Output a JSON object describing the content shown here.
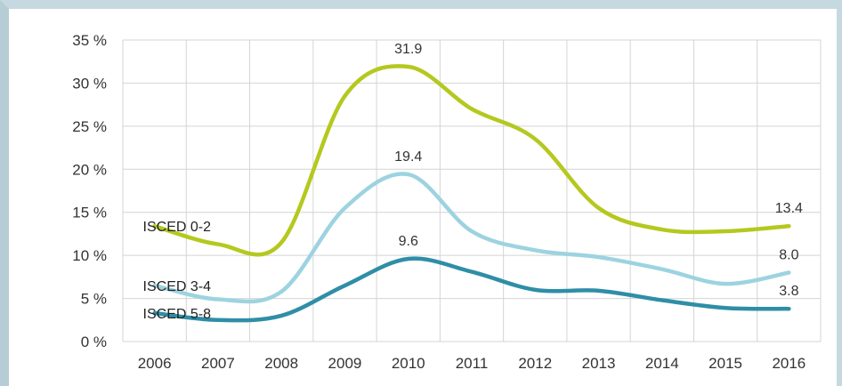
{
  "chart_data": {
    "type": "line",
    "categories": [
      "2006",
      "2007",
      "2008",
      "2009",
      "2010",
      "2011",
      "2012",
      "2013",
      "2014",
      "2015",
      "2016"
    ],
    "y_ticks": [
      "0 %",
      "5 %",
      "10 %",
      "15 %",
      "20 %",
      "25 %",
      "30 %",
      "35 %"
    ],
    "ylim": [
      0,
      35
    ],
    "grid": true,
    "series": [
      {
        "name": "ISCED 0-2",
        "color": "#b5c81f",
        "values": [
          13.4,
          11.3,
          11.5,
          28.5,
          31.9,
          27.0,
          23.5,
          15.5,
          13.0,
          12.8,
          13.4
        ],
        "labels": [
          {
            "index": 4,
            "text": "31.9"
          },
          {
            "index": 10,
            "text": "13.4"
          }
        ]
      },
      {
        "name": "ISCED 3-4",
        "color": "#9dd3e0",
        "values": [
          6.5,
          4.9,
          5.8,
          15.5,
          19.4,
          12.8,
          10.6,
          9.8,
          8.4,
          6.7,
          8.0
        ],
        "labels": [
          {
            "index": 4,
            "text": "19.4"
          },
          {
            "index": 10,
            "text": "8.0"
          }
        ]
      },
      {
        "name": "ISCED 5-8",
        "color": "#2f8ea6",
        "values": [
          3.3,
          2.5,
          3.0,
          6.5,
          9.6,
          8.1,
          6.0,
          5.9,
          4.8,
          3.9,
          3.8
        ],
        "labels": [
          {
            "index": 4,
            "text": "9.6"
          },
          {
            "index": 10,
            "text": "3.8"
          }
        ]
      }
    ]
  }
}
